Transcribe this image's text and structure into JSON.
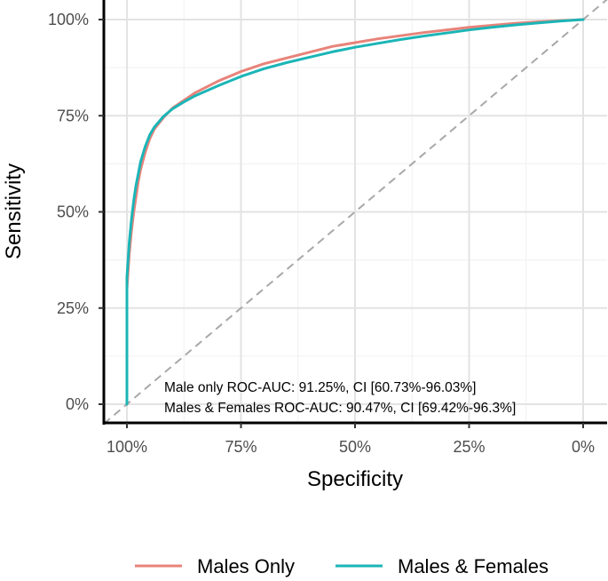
{
  "chart_data": {
    "type": "line",
    "xlabel": "Specificity",
    "ylabel": "Sensitivity",
    "x_reversed": true,
    "xlim": [
      1.0,
      0.0
    ],
    "ylim": [
      0.0,
      1.0
    ],
    "x_ticks": [
      {
        "value": 1.0,
        "label": "100%"
      },
      {
        "value": 0.75,
        "label": "75%"
      },
      {
        "value": 0.5,
        "label": "50%"
      },
      {
        "value": 0.25,
        "label": "25%"
      },
      {
        "value": 0.0,
        "label": "0%"
      }
    ],
    "y_ticks": [
      {
        "value": 0.0,
        "label": "0%"
      },
      {
        "value": 0.25,
        "label": "25%"
      },
      {
        "value": 0.5,
        "label": "50%"
      },
      {
        "value": 0.75,
        "label": "75%"
      },
      {
        "value": 1.0,
        "label": "100%"
      }
    ],
    "grid": true,
    "legend_position": "bottom",
    "reference_line": {
      "x": [
        1.0,
        0.0
      ],
      "y": [
        0.0,
        1.0
      ],
      "style": "dashed",
      "color": "#a8a8a8"
    },
    "series": [
      {
        "name": "Males Only",
        "color": "#e8837a",
        "x": [
          1.0,
          1.0,
          0.995,
          0.99,
          0.985,
          0.98,
          0.975,
          0.97,
          0.96,
          0.95,
          0.94,
          0.92,
          0.9,
          0.875,
          0.85,
          0.8,
          0.75,
          0.7,
          0.65,
          0.6,
          0.55,
          0.5,
          0.45,
          0.4,
          0.35,
          0.3,
          0.25,
          0.2,
          0.15,
          0.1,
          0.05,
          0.0
        ],
        "y": [
          0.0,
          0.3,
          0.39,
          0.45,
          0.5,
          0.54,
          0.58,
          0.61,
          0.655,
          0.69,
          0.715,
          0.745,
          0.77,
          0.79,
          0.81,
          0.84,
          0.865,
          0.885,
          0.9,
          0.915,
          0.93,
          0.94,
          0.95,
          0.958,
          0.966,
          0.973,
          0.98,
          0.985,
          0.99,
          0.994,
          0.997,
          1.0
        ]
      },
      {
        "name": "Males & Females",
        "color": "#1bb5b7",
        "x": [
          1.0,
          1.0,
          0.995,
          0.99,
          0.985,
          0.98,
          0.975,
          0.97,
          0.96,
          0.95,
          0.94,
          0.92,
          0.9,
          0.875,
          0.85,
          0.8,
          0.75,
          0.7,
          0.65,
          0.6,
          0.55,
          0.5,
          0.45,
          0.4,
          0.35,
          0.3,
          0.25,
          0.2,
          0.15,
          0.1,
          0.05,
          0.0
        ],
        "y": [
          0.0,
          0.33,
          0.42,
          0.48,
          0.53,
          0.57,
          0.6,
          0.63,
          0.67,
          0.7,
          0.72,
          0.748,
          0.768,
          0.786,
          0.802,
          0.828,
          0.852,
          0.872,
          0.888,
          0.902,
          0.916,
          0.928,
          0.938,
          0.948,
          0.957,
          0.965,
          0.973,
          0.98,
          0.986,
          0.991,
          0.996,
          1.0
        ]
      }
    ],
    "annotations": [
      "Male only ROC-AUC: 91.25%, CI [60.73%-96.03%]",
      "Males & Females ROC-AUC: 90.47%, CI [69.42%-96.3%]"
    ]
  },
  "colors": {
    "grid_major": "#e3e3e3",
    "grid_minor": "#f0f0f0",
    "axis": "#000000"
  }
}
